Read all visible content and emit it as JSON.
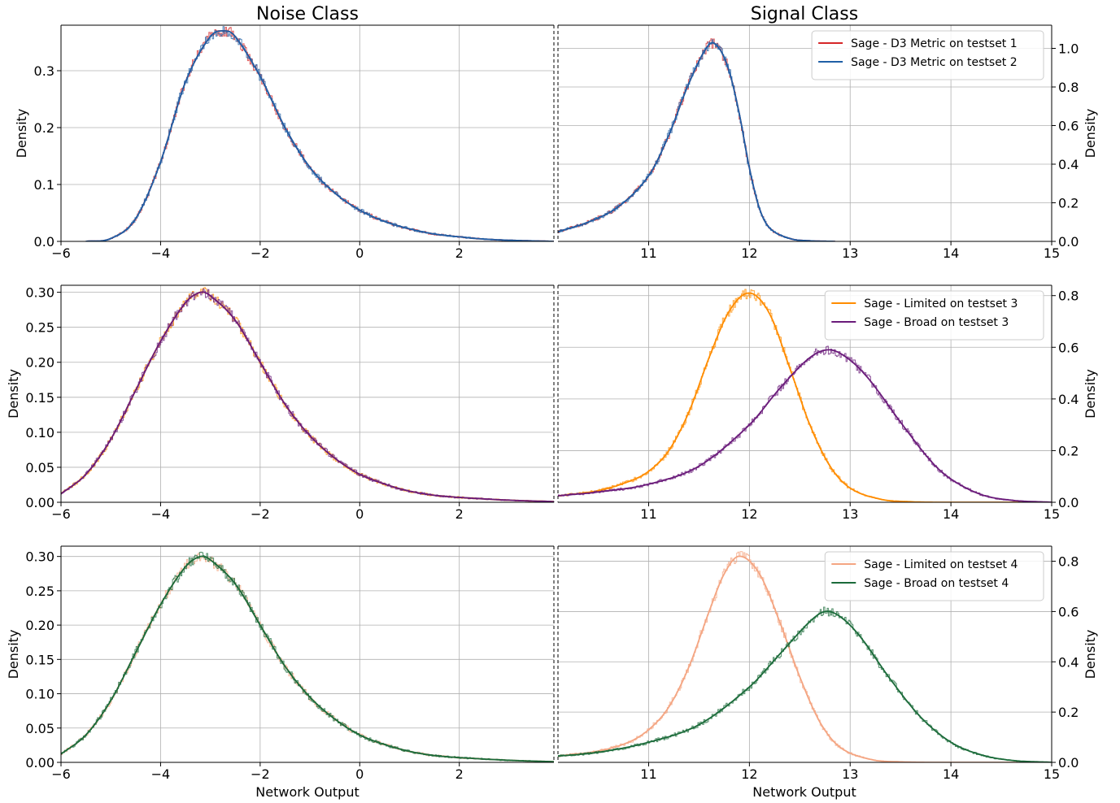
{
  "figure": {
    "column_titles": [
      "Noise Class",
      "Signal Class"
    ],
    "xlabel": "Network Output"
  },
  "chart_data": [
    {
      "type": "line",
      "panel": "row1-noise",
      "ylabel": "Density",
      "xlim": [
        -6,
        3.9
      ],
      "ylim": [
        0,
        0.38
      ],
      "xticks": [
        -6,
        -4,
        -2,
        0,
        2
      ],
      "xtick_labels": [
        "−6",
        "−4",
        "−2",
        "0",
        "2"
      ],
      "yticks": [
        0,
        0.1,
        0.2,
        0.3
      ],
      "ytick_labels": [
        "0.0",
        "0.1",
        "0.2",
        "0.3"
      ],
      "grid": true,
      "series": [
        {
          "color": "#d62728",
          "x": [
            -5.5,
            -5,
            -4.5,
            -4,
            -3.5,
            -3,
            -2.7,
            -2.5,
            -2,
            -1.5,
            -1,
            -0.5,
            0,
            0.5,
            1,
            1.5,
            2,
            2.5,
            3,
            3.9
          ],
          "y": [
            0.0,
            0.005,
            0.04,
            0.14,
            0.28,
            0.36,
            0.37,
            0.36,
            0.29,
            0.2,
            0.13,
            0.085,
            0.055,
            0.035,
            0.022,
            0.013,
            0.008,
            0.004,
            0.002,
            0.0
          ]
        },
        {
          "color": "#1f5fa6",
          "x": [
            -5.5,
            -5,
            -4.5,
            -4,
            -3.5,
            -3,
            -2.7,
            -2.5,
            -2,
            -1.5,
            -1,
            -0.5,
            0,
            0.5,
            1,
            1.5,
            2,
            2.5,
            3,
            3.9
          ],
          "y": [
            0.0,
            0.005,
            0.04,
            0.14,
            0.28,
            0.36,
            0.37,
            0.36,
            0.29,
            0.2,
            0.13,
            0.085,
            0.055,
            0.035,
            0.022,
            0.013,
            0.008,
            0.004,
            0.002,
            0.0
          ]
        }
      ]
    },
    {
      "type": "line",
      "panel": "row1-signal",
      "ylabel": "Density",
      "xlim": [
        10.1,
        15
      ],
      "ylim": [
        0,
        1.12
      ],
      "xticks": [
        11,
        12,
        13,
        14,
        15
      ],
      "xtick_labels": [
        "11",
        "12",
        "13",
        "14",
        "15"
      ],
      "yticks": [
        0,
        0.2,
        0.4,
        0.6,
        0.8,
        1.0
      ],
      "ytick_labels": [
        "0.0",
        "0.2",
        "0.4",
        "0.6",
        "0.8",
        "1.0"
      ],
      "grid": true,
      "legend_position": "upper right",
      "legend": [
        "Sage - D3 Metric on testset 1",
        "Sage - D3 Metric on testset 2"
      ],
      "series": [
        {
          "name": "Sage - D3 Metric on testset 1",
          "color": "#d62728",
          "x": [
            10.1,
            10.4,
            10.7,
            11,
            11.2,
            11.4,
            11.6,
            11.7,
            11.8,
            11.9,
            12,
            12.1,
            12.2,
            12.4,
            12.6,
            12.85
          ],
          "y": [
            0.05,
            0.1,
            0.18,
            0.34,
            0.55,
            0.82,
            1.02,
            1.0,
            0.88,
            0.66,
            0.38,
            0.17,
            0.07,
            0.015,
            0.003,
            0.0
          ]
        },
        {
          "name": "Sage - D3 Metric on testset 2",
          "color": "#1f5fa6",
          "x": [
            10.1,
            10.4,
            10.7,
            11,
            11.2,
            11.4,
            11.6,
            11.7,
            11.8,
            11.9,
            12,
            12.1,
            12.2,
            12.4,
            12.6,
            12.85
          ],
          "y": [
            0.05,
            0.1,
            0.18,
            0.34,
            0.55,
            0.82,
            1.02,
            1.0,
            0.88,
            0.66,
            0.38,
            0.17,
            0.07,
            0.015,
            0.003,
            0.0
          ]
        }
      ]
    },
    {
      "type": "line",
      "panel": "row2-noise",
      "ylabel": "Density",
      "xlim": [
        -6,
        3.9
      ],
      "ylim": [
        0,
        0.31
      ],
      "xticks": [
        -6,
        -4,
        -2,
        0,
        2
      ],
      "xtick_labels": [
        "−6",
        "−4",
        "−2",
        "0",
        "2"
      ],
      "yticks": [
        0,
        0.05,
        0.1,
        0.15,
        0.2,
        0.25,
        0.3
      ],
      "ytick_labels": [
        "0.00",
        "0.05",
        "0.10",
        "0.15",
        "0.20",
        "0.25",
        "0.30"
      ],
      "grid": true,
      "series": [
        {
          "color": "#ff8c00",
          "x": [
            -6,
            -5.5,
            -5,
            -4.5,
            -4,
            -3.5,
            -3.2,
            -3,
            -2.5,
            -2,
            -1.5,
            -1,
            -0.5,
            0,
            0.5,
            1,
            1.5,
            2,
            3,
            3.9
          ],
          "y": [
            0.012,
            0.04,
            0.09,
            0.16,
            0.23,
            0.285,
            0.3,
            0.295,
            0.26,
            0.2,
            0.14,
            0.095,
            0.063,
            0.04,
            0.026,
            0.016,
            0.01,
            0.007,
            0.003,
            0.001
          ]
        },
        {
          "color": "#6a1b7a",
          "x": [
            -6,
            -5.5,
            -5,
            -4.5,
            -4,
            -3.5,
            -3.2,
            -3,
            -2.5,
            -2,
            -1.5,
            -1,
            -0.5,
            0,
            0.5,
            1,
            1.5,
            2,
            3,
            3.9
          ],
          "y": [
            0.012,
            0.04,
            0.09,
            0.16,
            0.23,
            0.285,
            0.3,
            0.295,
            0.26,
            0.2,
            0.14,
            0.095,
            0.063,
            0.04,
            0.026,
            0.016,
            0.01,
            0.007,
            0.003,
            0.001
          ]
        }
      ]
    },
    {
      "type": "line",
      "panel": "row2-signal",
      "ylabel": "Density",
      "xlim": [
        10.1,
        15
      ],
      "ylim": [
        0,
        0.84
      ],
      "xticks": [
        11,
        12,
        13,
        14,
        15
      ],
      "xtick_labels": [
        "11",
        "12",
        "13",
        "14",
        "15"
      ],
      "yticks": [
        0,
        0.2,
        0.4,
        0.6,
        0.8
      ],
      "ytick_labels": [
        "0.0",
        "0.2",
        "0.4",
        "0.6",
        "0.8"
      ],
      "grid": true,
      "legend_position": "upper right",
      "legend": [
        "Sage - Limited on testset 3",
        "Sage - Broad on testset 3"
      ],
      "series": [
        {
          "name": "Sage - Limited on testset 3",
          "color": "#ff8c00",
          "x": [
            10.1,
            10.5,
            10.8,
            11,
            11.2,
            11.4,
            11.6,
            11.8,
            12,
            12.2,
            12.4,
            12.6,
            12.8,
            13,
            13.3,
            13.6,
            14,
            15
          ],
          "y": [
            0.025,
            0.045,
            0.08,
            0.12,
            0.2,
            0.35,
            0.56,
            0.74,
            0.81,
            0.73,
            0.52,
            0.3,
            0.14,
            0.055,
            0.012,
            0.002,
            0.0,
            0.0
          ]
        },
        {
          "name": "Sage - Broad on testset 3",
          "color": "#6a1b7a",
          "x": [
            10.1,
            10.5,
            11,
            11.5,
            12,
            12.3,
            12.6,
            12.8,
            13,
            13.2,
            13.5,
            13.8,
            14,
            14.3,
            14.6,
            15
          ],
          "y": [
            0.025,
            0.04,
            0.07,
            0.14,
            0.3,
            0.44,
            0.56,
            0.59,
            0.55,
            0.47,
            0.31,
            0.16,
            0.09,
            0.03,
            0.008,
            0.0
          ]
        }
      ]
    },
    {
      "type": "line",
      "panel": "row3-noise",
      "ylabel": "Density",
      "xlim": [
        -6,
        3.9
      ],
      "ylim": [
        0,
        0.315
      ],
      "xticks": [
        -6,
        -4,
        -2,
        0,
        2
      ],
      "xtick_labels": [
        "−6",
        "−4",
        "−2",
        "0",
        "2"
      ],
      "yticks": [
        0,
        0.05,
        0.1,
        0.15,
        0.2,
        0.25,
        0.3
      ],
      "ytick_labels": [
        "0.00",
        "0.05",
        "0.10",
        "0.15",
        "0.20",
        "0.25",
        "0.30"
      ],
      "grid": true,
      "series": [
        {
          "color": "#f4a582",
          "x": [
            -6,
            -5.5,
            -5,
            -4.5,
            -4,
            -3.5,
            -3.2,
            -3,
            -2.5,
            -2,
            -1.5,
            -1,
            -0.5,
            0,
            0.5,
            1,
            1.5,
            2,
            3,
            3.9
          ],
          "y": [
            0.012,
            0.04,
            0.09,
            0.16,
            0.23,
            0.285,
            0.3,
            0.295,
            0.26,
            0.2,
            0.14,
            0.095,
            0.063,
            0.04,
            0.026,
            0.016,
            0.01,
            0.007,
            0.003,
            0.001
          ]
        },
        {
          "color": "#1b6b3a",
          "x": [
            -6,
            -5.5,
            -5,
            -4.5,
            -4,
            -3.5,
            -3.2,
            -3,
            -2.5,
            -2,
            -1.5,
            -1,
            -0.5,
            0,
            0.5,
            1,
            1.5,
            2,
            3,
            3.9
          ],
          "y": [
            0.012,
            0.04,
            0.09,
            0.16,
            0.23,
            0.285,
            0.3,
            0.295,
            0.26,
            0.2,
            0.14,
            0.095,
            0.063,
            0.04,
            0.026,
            0.016,
            0.01,
            0.007,
            0.003,
            0.001
          ]
        }
      ]
    },
    {
      "type": "line",
      "panel": "row3-signal",
      "ylabel": "Density",
      "xlim": [
        10.1,
        15
      ],
      "ylim": [
        0,
        0.86
      ],
      "xticks": [
        11,
        12,
        13,
        14,
        15
      ],
      "xtick_labels": [
        "11",
        "12",
        "13",
        "14",
        "15"
      ],
      "yticks": [
        0,
        0.2,
        0.4,
        0.6,
        0.8
      ],
      "ytick_labels": [
        "0.0",
        "0.2",
        "0.4",
        "0.6",
        "0.8"
      ],
      "grid": true,
      "legend_position": "upper right",
      "legend": [
        "Sage - Limited on testset 4",
        "Sage - Broad on testset 4"
      ],
      "series": [
        {
          "name": "Sage - Limited on testset 4",
          "color": "#f4a582",
          "x": [
            10.1,
            10.5,
            10.8,
            11,
            11.2,
            11.4,
            11.6,
            11.75,
            11.9,
            12.1,
            12.3,
            12.5,
            12.7,
            12.9,
            13.2,
            13.5,
            14,
            15
          ],
          "y": [
            0.025,
            0.045,
            0.08,
            0.13,
            0.22,
            0.38,
            0.6,
            0.75,
            0.82,
            0.75,
            0.56,
            0.34,
            0.16,
            0.06,
            0.012,
            0.002,
            0.0,
            0.0
          ]
        },
        {
          "name": "Sage - Broad on testset 4",
          "color": "#1b6b3a",
          "x": [
            10.1,
            10.5,
            11,
            11.5,
            12,
            12.3,
            12.6,
            12.75,
            12.9,
            13.1,
            13.4,
            13.7,
            14,
            14.3,
            14.6,
            15
          ],
          "y": [
            0.025,
            0.04,
            0.08,
            0.15,
            0.3,
            0.43,
            0.56,
            0.6,
            0.58,
            0.5,
            0.33,
            0.18,
            0.08,
            0.03,
            0.008,
            0.0
          ]
        }
      ]
    }
  ]
}
